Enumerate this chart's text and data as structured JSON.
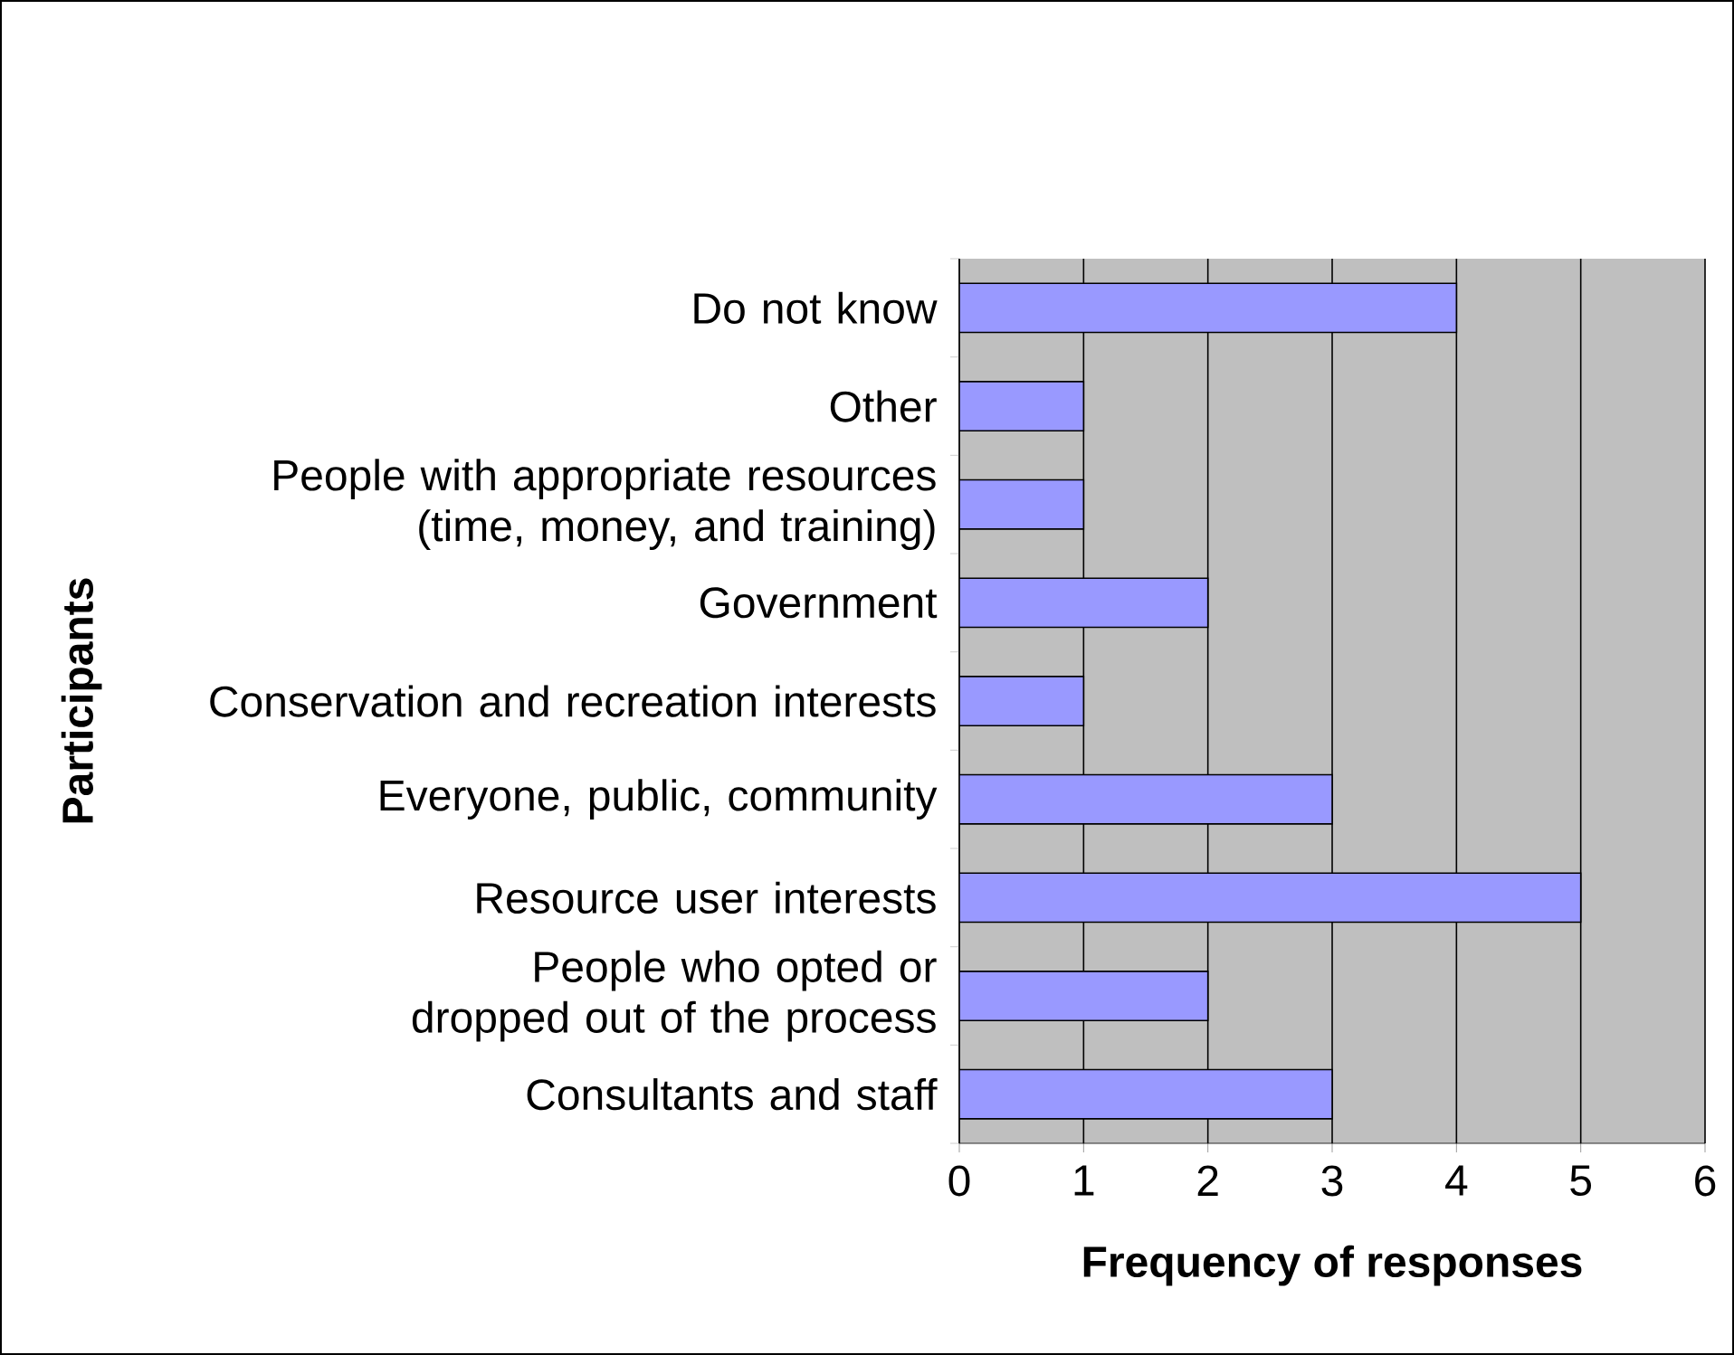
{
  "chart_data": {
    "type": "bar",
    "orientation": "horizontal",
    "xlabel": "Frequency of responses",
    "ylabel": "Participants",
    "categories": [
      "Do not know",
      "Other",
      "People with appropriate resources (time, money, and training)",
      "Government",
      "Conservation and recreation interests",
      "Everyone, public, community",
      "Resource user interests",
      "People who opted or dropped out of the process",
      "Consultants and staff"
    ],
    "values": [
      4,
      1,
      1,
      2,
      1,
      3,
      5,
      2,
      3
    ],
    "color": "#9999ff",
    "xlim": [
      0,
      6
    ],
    "xticks": [
      0,
      1,
      2,
      3,
      4,
      5,
      6
    ],
    "grid": "x"
  }
}
